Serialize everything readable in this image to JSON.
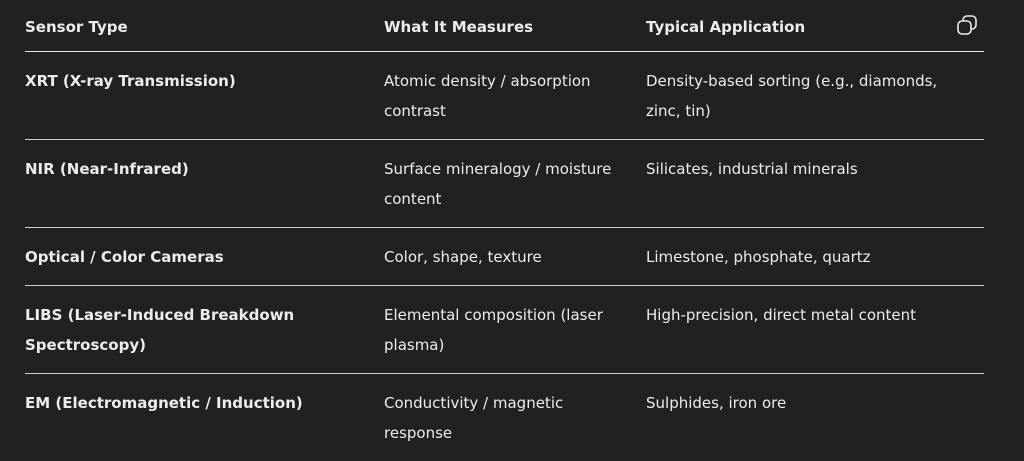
{
  "table": {
    "headers": [
      "Sensor Type",
      "What It Measures",
      "Typical Application"
    ],
    "rows": [
      [
        "XRT (X-ray Transmission)",
        "Atomic density / absorption contrast",
        "Density-based sorting (e.g., diamonds, zinc, tin)"
      ],
      [
        "NIR (Near-Infrared)",
        "Surface mineralogy / moisture content",
        "Silicates, industrial minerals"
      ],
      [
        "Optical / Color Cameras",
        "Color, shape, texture",
        "Limestone, phosphate, quartz"
      ],
      [
        "LIBS (Laser-Induced Breakdown Spectroscopy)",
        "Elemental composition (laser plasma)",
        "High-precision, direct metal content"
      ],
      [
        "EM (Electromagnetic / Induction)",
        "Conductivity / magnetic response",
        "Sulphides, iron ore"
      ]
    ]
  },
  "icons": {
    "copy": "copy-icon"
  },
  "colors": {
    "background": "#212121",
    "text": "#ececec"
  }
}
